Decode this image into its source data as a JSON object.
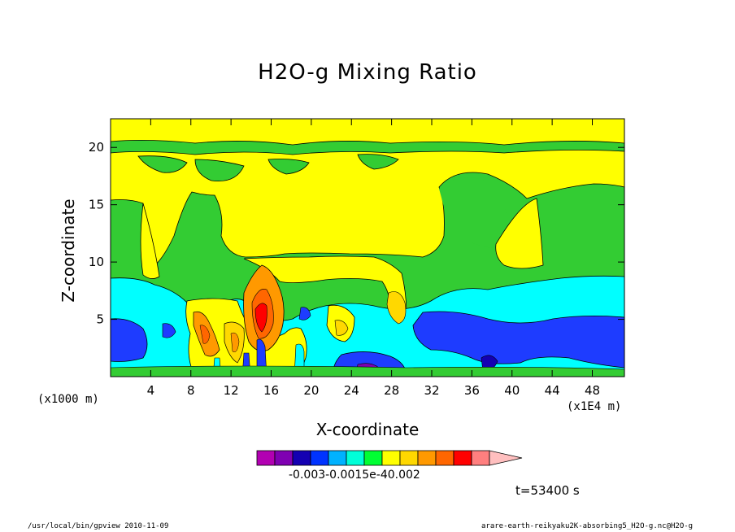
{
  "chart_data": {
    "type": "heatmap",
    "title": "H2O-g Mixing Ratio",
    "xlabel": "X-coordinate",
    "ylabel": "Z-coordinate",
    "x_unit_left": "(x1000 m)",
    "x_unit_right": "(x1E4 m)",
    "x_ticks": [
      4,
      8,
      12,
      16,
      20,
      24,
      28,
      32,
      36,
      40,
      44,
      48
    ],
    "y_ticks": [
      5,
      10,
      15,
      20
    ],
    "xlim": [
      0,
      51.2
    ],
    "ylim": [
      0,
      22.5
    ],
    "time_label": "t=53400 s",
    "colorbar": {
      "labels_text": "-0.003-0.0015e-40.002",
      "colors": [
        "#b200b2",
        "#7f00b2",
        "#1400b2",
        "#0033ff",
        "#00b2ff",
        "#00ffd8",
        "#00ff33",
        "#ffff00",
        "#ffd800",
        "#ff9900",
        "#ff6600",
        "#ff0000",
        "#ff7f7f",
        "#ffbfbf"
      ]
    },
    "regions": [
      {
        "name": "background",
        "color": "#ffff00"
      },
      {
        "name": "green-upper",
        "color": "#33cc33"
      },
      {
        "name": "cyan-band",
        "color": "#00ffff"
      },
      {
        "name": "blue-band",
        "color": "#1e3cff"
      },
      {
        "name": "orange-plume",
        "color": "#ff9900"
      }
    ]
  },
  "footer": {
    "left": "/usr/local/bin/gpview  2010-11-09",
    "right": "arare-earth-reikyaku2K-absorbing5_H2O-g.nc@H2O-g"
  }
}
